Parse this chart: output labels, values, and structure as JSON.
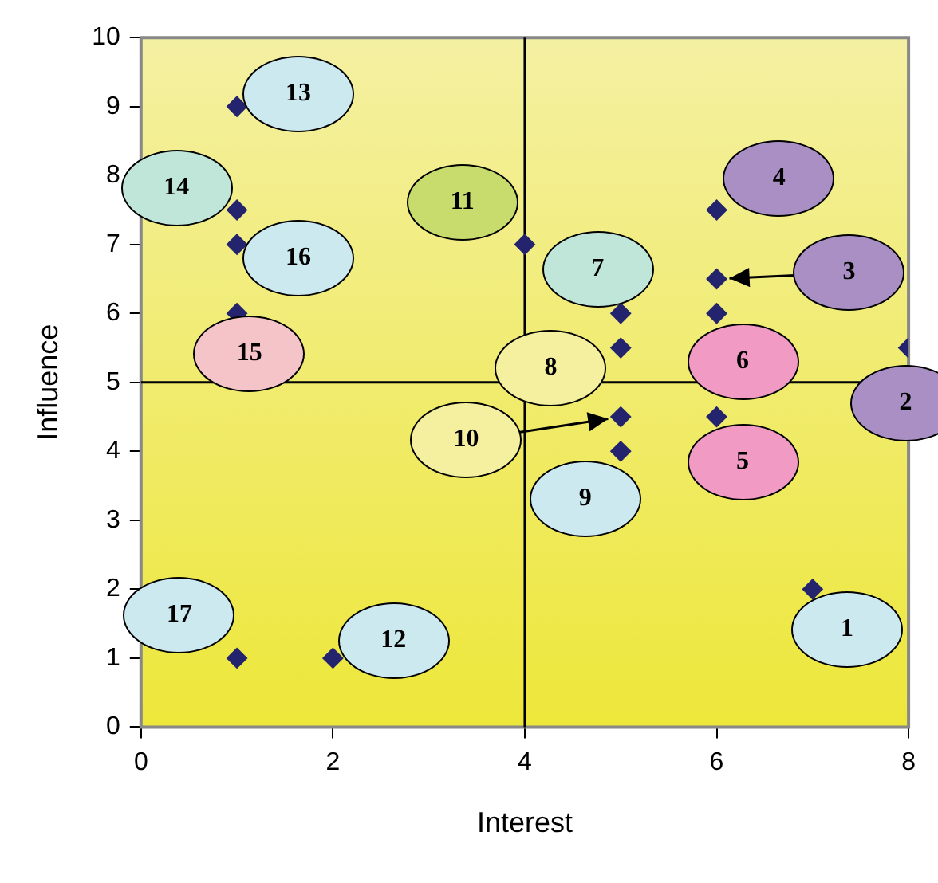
{
  "chart_data": {
    "type": "scatter",
    "xlabel": "Interest",
    "ylabel": "Influence",
    "x": [
      7,
      8,
      6,
      6,
      6,
      6,
      5,
      5,
      5,
      5,
      4,
      2,
      1,
      1,
      1,
      1,
      1
    ],
    "series": [
      {
        "color": "#24246e",
        "values": [
          2,
          5.5,
          6.5,
          7.5,
          4.5,
          6,
          6,
          5.5,
          4,
          4.5,
          7,
          1,
          9,
          7.5,
          6,
          7,
          1
        ]
      }
    ],
    "marker": "diamond",
    "xlim": [
      0,
      8
    ],
    "xticks": [
      0,
      2,
      4,
      6,
      8
    ],
    "ylim": [
      0,
      10
    ],
    "yticks": [
      0,
      1,
      2,
      3,
      4,
      5,
      6,
      7,
      8,
      9,
      10
    ],
    "grid": false,
    "legend": false,
    "ref_lines": [
      {
        "axis": "x",
        "value": 4,
        "color": "#000000"
      },
      {
        "axis": "y",
        "value": 5,
        "color": "#000000"
      }
    ],
    "annotations": [
      {
        "text": "1",
        "x": 7,
        "y": 2
      },
      {
        "text": "2",
        "x": 8,
        "y": 5.5
      },
      {
        "text": "3",
        "x": 6,
        "y": 6.5
      },
      {
        "text": "4",
        "x": 6,
        "y": 7.5
      },
      {
        "text": "5",
        "x": 6,
        "y": 4.5
      },
      {
        "text": "6",
        "x": 6,
        "y": 6
      },
      {
        "text": "7",
        "x": 5,
        "y": 6
      },
      {
        "text": "8",
        "x": 5,
        "y": 5.5
      },
      {
        "text": "9",
        "x": 5,
        "y": 4
      },
      {
        "text": "10",
        "x": 5,
        "y": 4.5
      },
      {
        "text": "11",
        "x": 4,
        "y": 7
      },
      {
        "text": "12",
        "x": 2,
        "y": 1
      },
      {
        "text": "13",
        "x": 1,
        "y": 9
      },
      {
        "text": "14",
        "x": 1,
        "y": 7.5
      },
      {
        "text": "15",
        "x": 1,
        "y": 6
      },
      {
        "text": "16",
        "x": 1,
        "y": 7
      },
      {
        "text": "17",
        "x": 1,
        "y": 1
      }
    ]
  }
}
